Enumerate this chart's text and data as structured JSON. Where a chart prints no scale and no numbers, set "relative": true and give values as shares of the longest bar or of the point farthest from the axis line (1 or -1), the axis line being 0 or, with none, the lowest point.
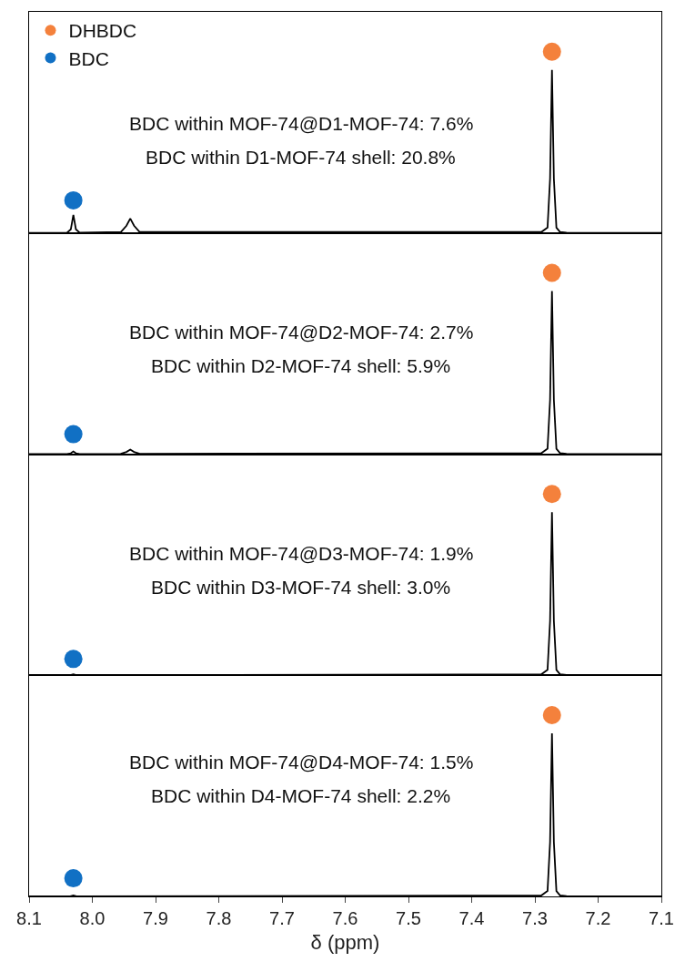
{
  "chart_data": [
    {
      "type": "line",
      "relative": true,
      "xlim": [
        8.1,
        7.1
      ],
      "tick_labels": false,
      "legend": "top left",
      "annotations": [
        "BDC within MOF-74@D1-MOF-74: 7.6%",
        "BDC within D1-MOF-74 shell: 20.8%"
      ],
      "series": [
        {
          "color": "#000000",
          "x": [
            8.1,
            8.04,
            8.034,
            8.03,
            8.026,
            8.02,
            7.955,
            7.946,
            7.94,
            7.934,
            7.925,
            7.29,
            7.28,
            7.276,
            7.273,
            7.27,
            7.266,
            7.26,
            7.25,
            7.1
          ],
          "values": [
            0,
            0.002,
            0.02,
            0.1,
            0.02,
            0.002,
            0.005,
            0.04,
            0.08,
            0.04,
            0.005,
            0.005,
            0.03,
            0.3,
            0.9,
            0.3,
            0.03,
            0.005,
            0.002,
            0
          ]
        },
        {
          "name": "DHBDC",
          "type": "scatter",
          "marker": "circle",
          "color": "#f4813c",
          "x": [
            7.273
          ],
          "values": [
            1
          ]
        },
        {
          "name": "BDC",
          "type": "scatter",
          "marker": "circle",
          "color": "#1170c4",
          "x": [
            8.03
          ],
          "values": [
            0.18
          ]
        }
      ]
    },
    {
      "type": "line",
      "relative": true,
      "xlim": [
        8.1,
        7.1
      ],
      "tick_labels": false,
      "annotations": [
        "BDC within MOF-74@D2-MOF-74: 2.7%",
        "BDC within D2-MOF-74 shell: 5.9%"
      ],
      "series": [
        {
          "color": "#000000",
          "x": [
            8.1,
            8.04,
            8.034,
            8.03,
            8.026,
            8.02,
            7.955,
            7.946,
            7.94,
            7.934,
            7.925,
            7.29,
            7.28,
            7.276,
            7.273,
            7.27,
            7.266,
            7.26,
            7.25,
            7.1
          ],
          "values": [
            0,
            0.001,
            0.005,
            0.015,
            0.005,
            0.001,
            0.002,
            0.012,
            0.025,
            0.012,
            0.002,
            0.005,
            0.03,
            0.3,
            0.9,
            0.3,
            0.03,
            0.005,
            0.002,
            0
          ]
        },
        {
          "type": "scatter",
          "marker": "circle",
          "color": "#f4813c",
          "x": [
            7.273
          ],
          "values": [
            1
          ]
        },
        {
          "type": "scatter",
          "marker": "circle",
          "color": "#1170c4",
          "x": [
            8.03
          ],
          "values": [
            0.11
          ]
        }
      ]
    },
    {
      "type": "line",
      "relative": true,
      "xlim": [
        8.1,
        7.1
      ],
      "tick_labels": false,
      "annotations": [
        "BDC within MOF-74@D3-MOF-74: 1.9%",
        "BDC within D3-MOF-74 shell: 3.0%"
      ],
      "series": [
        {
          "color": "#000000",
          "x": [
            8.1,
            8.035,
            8.03,
            8.025,
            7.29,
            7.28,
            7.276,
            7.273,
            7.27,
            7.266,
            7.26,
            7.25,
            7.1
          ],
          "values": [
            0,
            0.001,
            0.005,
            0.001,
            0.005,
            0.03,
            0.3,
            0.9,
            0.3,
            0.03,
            0.005,
            0.002,
            0
          ]
        },
        {
          "type": "scatter",
          "marker": "circle",
          "color": "#f4813c",
          "x": [
            7.273
          ],
          "values": [
            1
          ]
        },
        {
          "type": "scatter",
          "marker": "circle",
          "color": "#1170c4",
          "x": [
            8.03
          ],
          "values": [
            0.09
          ]
        }
      ]
    },
    {
      "type": "line",
      "relative": true,
      "xlim": [
        8.1,
        7.1
      ],
      "xticks": [
        8.1,
        {
          "value": 8.0,
          "label": "8.0"
        },
        7.9,
        7.8,
        7.7,
        7.6,
        7.5,
        7.4,
        7.3,
        7.2,
        7.1
      ],
      "tick_labels": "x",
      "xlabel": "δ (ppm)",
      "annotations": [
        "BDC within MOF-74@D4-MOF-74: 1.5%",
        "BDC within D4-MOF-74 shell: 2.2%"
      ],
      "series": [
        {
          "color": "#000000",
          "x": [
            8.1,
            8.035,
            8.03,
            8.025,
            7.29,
            7.28,
            7.276,
            7.273,
            7.27,
            7.266,
            7.26,
            7.25,
            7.1
          ],
          "values": [
            0,
            0.001,
            0.005,
            0.001,
            0.005,
            0.03,
            0.3,
            0.9,
            0.3,
            0.03,
            0.005,
            0.002,
            0
          ]
        },
        {
          "type": "scatter",
          "marker": "circle",
          "color": "#f4813c",
          "x": [
            7.273
          ],
          "values": [
            1
          ]
        },
        {
          "type": "scatter",
          "marker": "circle",
          "color": "#1170c4",
          "x": [
            8.03
          ],
          "values": [
            0.1
          ]
        }
      ]
    }
  ]
}
